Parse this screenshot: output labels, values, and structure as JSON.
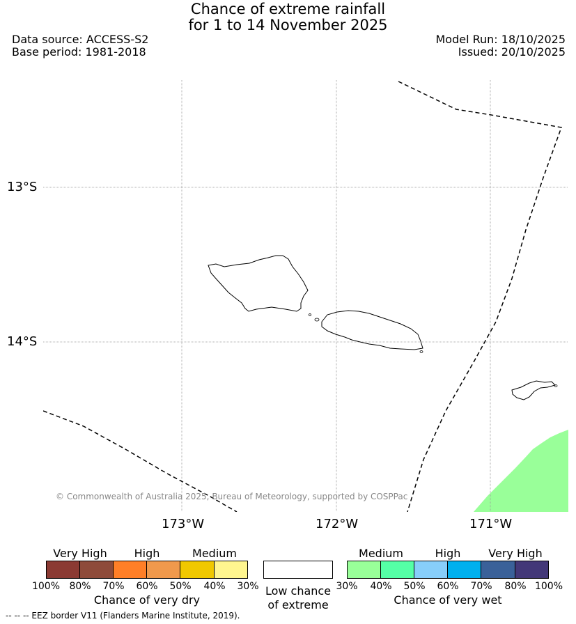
{
  "title": {
    "line1": "Chance of extreme rainfall",
    "line2": "for 1 to 14 November 2025"
  },
  "meta": {
    "data_source": "Data source: ACCESS-S2",
    "base_period": "Base period: 1981-2018",
    "model_run": "Model Run: 18/10/2025",
    "issued": "Issued: 20/10/2025"
  },
  "map": {
    "lat_labels": [
      "13°S",
      "14°S"
    ],
    "lon_labels": [
      "173°W",
      "172°W",
      "171°W"
    ],
    "copyright": "© Commonwealth of Australia 2025, Bureau of Meteorology, supported by COSPPac",
    "wet_fill_color": "#99ff99"
  },
  "legend": {
    "dry": {
      "categories": [
        "Very High",
        "High",
        "Medium"
      ],
      "ticks": [
        "100%",
        "80%",
        "70%",
        "60%",
        "50%",
        "40%",
        "30%"
      ],
      "colors": [
        "#8b3a33",
        "#8e4b3a",
        "#ff7f27",
        "#f0994c",
        "#f0c800",
        "#fff68f"
      ],
      "label": "Chance of very dry"
    },
    "low": {
      "label_line1": "Low chance",
      "label_line2": "of extreme"
    },
    "wet": {
      "categories": [
        "Medium",
        "High",
        "Very High"
      ],
      "ticks": [
        "30%",
        "40%",
        "50%",
        "60%",
        "70%",
        "80%",
        "100%"
      ],
      "colors": [
        "#99ff99",
        "#55ffa6",
        "#87cefa",
        "#00b0ee",
        "#3a6199",
        "#433878"
      ],
      "label": "Chance of very wet"
    }
  },
  "footer": {
    "eez_note": "--  --  -- EEZ border V11 (Flanders Marine Institute, 2019)."
  }
}
